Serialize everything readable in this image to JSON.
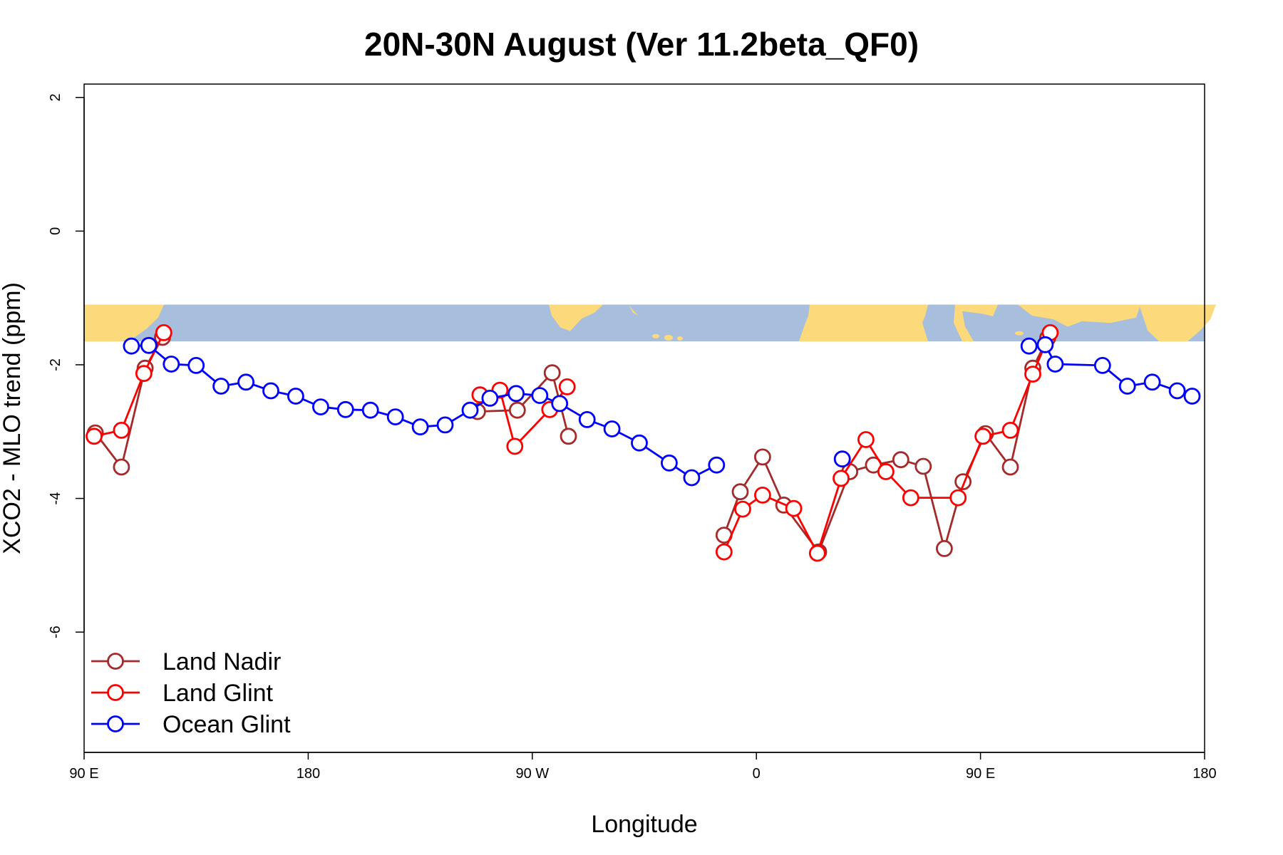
{
  "chart_data": {
    "type": "line",
    "title": "20N-30N August (Ver 11.2beta_QF0)",
    "xlabel": "Longitude",
    "ylabel": "XCO2 - MLO trend (ppm)",
    "xlim": [
      90,
      540
    ],
    "ylim": [
      -7.8,
      2.2
    ],
    "x_ticks": [
      {
        "value": 90,
        "label": "90 E"
      },
      {
        "value": 180,
        "label": "180"
      },
      {
        "value": 270,
        "label": "90 W"
      },
      {
        "value": 360,
        "label": "0"
      },
      {
        "value": 450,
        "label": "90 E"
      },
      {
        "value": 540,
        "label": "180"
      }
    ],
    "y_ticks": [
      {
        "value": 2,
        "label": "2"
      },
      {
        "value": 0,
        "label": "0"
      },
      {
        "value": -2,
        "label": "-2"
      },
      {
        "value": -4,
        "label": "-4"
      },
      {
        "value": -6,
        "label": "-6"
      }
    ],
    "map_band": {
      "ymin": -1.65,
      "ymax": -1.1,
      "ocean_color": "#a8bedd",
      "land_color": "#fcd97a"
    },
    "legend": {
      "position": "bottom-left"
    },
    "series": [
      {
        "name": "Land Nadir",
        "color": "#a52a2a",
        "segments": [
          [
            [
              94.5,
              -3.02
            ],
            [
              105,
              -3.53
            ],
            [
              114.5,
              -2.05
            ],
            [
              121.5,
              -1.59
            ]
          ],
          [
            [
              248,
              -2.7
            ],
            [
              264,
              -2.68
            ],
            [
              278,
              -2.12
            ],
            [
              284.5,
              -3.07
            ]
          ],
          [
            [
              347,
              -4.55
            ],
            [
              353.5,
              -3.9
            ],
            [
              362.5,
              -3.38
            ],
            [
              371,
              -4.1
            ],
            [
              385,
              -4.8
            ],
            [
              397.5,
              -3.6
            ],
            [
              407,
              -3.5
            ],
            [
              418,
              -3.42
            ],
            [
              427,
              -3.52
            ],
            [
              435.5,
              -4.75
            ],
            [
              443,
              -3.75
            ],
            [
              452,
              -3.03
            ],
            [
              462,
              -3.53
            ],
            [
              471,
              -2.05
            ],
            [
              477,
              -1.6
            ]
          ]
        ]
      },
      {
        "name": "Land Glint",
        "color": "#ff0000",
        "segments": [
          [
            [
              94,
              -3.07
            ],
            [
              105,
              -2.98
            ],
            [
              114,
              -2.13
            ],
            [
              122,
              -1.52
            ]
          ],
          [
            [
              249,
              -2.45
            ],
            [
              257,
              -2.38
            ],
            [
              263,
              -3.22
            ],
            [
              277,
              -2.67
            ],
            [
              284,
              -2.33
            ]
          ],
          [
            [
              347,
              -4.8
            ],
            [
              354.5,
              -4.16
            ],
            [
              362.5,
              -3.95
            ],
            [
              375,
              -4.15
            ],
            [
              384.5,
              -4.82
            ],
            [
              394,
              -3.7
            ],
            [
              404,
              -3.12
            ],
            [
              412,
              -3.6
            ],
            [
              422,
              -3.99
            ],
            [
              441,
              -3.99
            ],
            [
              451,
              -3.07
            ],
            [
              462,
              -2.98
            ],
            [
              471,
              -2.14
            ],
            [
              478,
              -1.52
            ]
          ]
        ]
      },
      {
        "name": "Ocean Glint",
        "color": "#0000ff",
        "segments": [
          [
            [
              109,
              -1.72
            ],
            [
              116,
              -1.71
            ],
            [
              125,
              -1.99
            ],
            [
              135,
              -2.01
            ],
            [
              145,
              -2.32
            ],
            [
              155,
              -2.26
            ],
            [
              165,
              -2.39
            ],
            [
              175,
              -2.47
            ],
            [
              185,
              -2.63
            ],
            [
              195,
              -2.67
            ],
            [
              205,
              -2.68
            ],
            [
              215,
              -2.78
            ],
            [
              225,
              -2.93
            ],
            [
              235,
              -2.9
            ],
            [
              245,
              -2.68
            ],
            [
              253,
              -2.5
            ],
            [
              263.5,
              -2.43
            ],
            [
              273,
              -2.46
            ],
            [
              281,
              -2.58
            ],
            [
              292,
              -2.82
            ],
            [
              302,
              -2.96
            ],
            [
              313,
              -3.17
            ],
            [
              325,
              -3.47
            ],
            [
              334,
              -3.69
            ],
            [
              344,
              -3.5
            ]
          ],
          [
            [
              394.5,
              -3.41
            ]
          ],
          [
            [
              469.5,
              -1.72
            ],
            [
              476,
              -1.7
            ],
            [
              480,
              -1.99
            ],
            [
              499,
              -2.01
            ],
            [
              509,
              -2.32
            ],
            [
              519,
              -2.26
            ],
            [
              529,
              -2.39
            ],
            [
              535,
              -2.47
            ]
          ]
        ]
      }
    ]
  }
}
